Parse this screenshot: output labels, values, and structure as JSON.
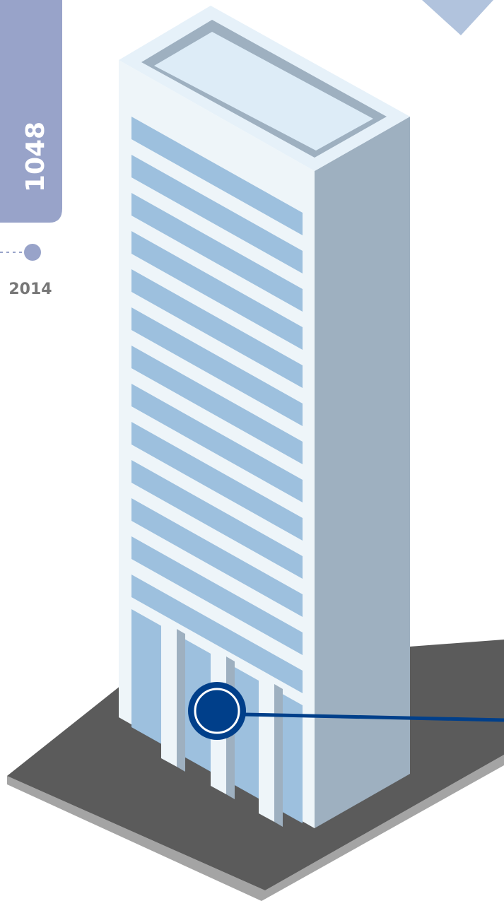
{
  "height_value": "1048",
  "year": "2014",
  "colors": {
    "tab": "#98a3c9",
    "roof_rim": "#9eb0c0",
    "roof": "#ddecf7",
    "facade": "#eef5f9",
    "side": "#9eb0c0",
    "windows": "#9dc0de",
    "base_top": "#5b5b5b",
    "base_edge": "#a4a4a4",
    "marker": "#003f8a",
    "year_dot": "#98a3c9",
    "arrow": "#b1c3dd"
  },
  "icons": {
    "marker": "location-marker-icon",
    "arrow": "chevron-down-icon"
  }
}
